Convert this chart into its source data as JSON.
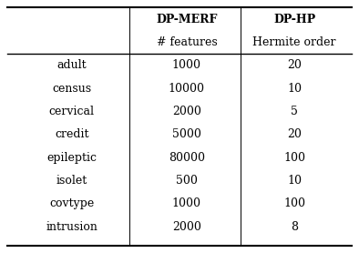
{
  "datasets": [
    "adult",
    "census",
    "cervical",
    "credit",
    "epileptic",
    "isolet",
    "covtype",
    "intrusion"
  ],
  "dp_merf_features": [
    "1000",
    "10000",
    "2000",
    "5000",
    "80000",
    "500",
    "1000",
    "2000"
  ],
  "dp_hp_order": [
    "20",
    "10",
    "5",
    "20",
    "100",
    "10",
    "100",
    "8"
  ],
  "col1_header": "DP-MERF",
  "col1_subheader": "# features",
  "col2_header": "DP-HP",
  "col2_subheader": "Hermite order",
  "background_color": "#ffffff",
  "text_color": "#000000",
  "font_size": 9,
  "header_font_size": 9
}
